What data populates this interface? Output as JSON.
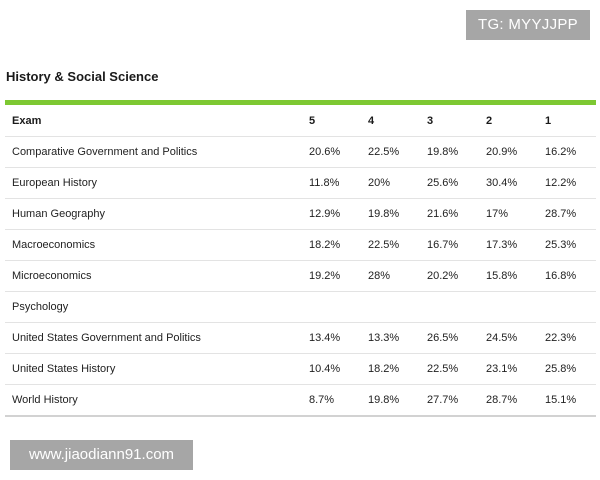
{
  "watermark_top": "TG: MYYJJPP",
  "watermark_bottom": "www.jiaodiann91.com",
  "section_title": "History & Social Science",
  "table": {
    "headers": [
      "Exam",
      "5",
      "4",
      "3",
      "2",
      "1"
    ],
    "rows": [
      [
        "Comparative Government and Politics",
        "20.6%",
        "22.5%",
        "19.8%",
        "20.9%",
        "16.2%"
      ],
      [
        "European History",
        "11.8%",
        "20%",
        "25.6%",
        "30.4%",
        "12.2%"
      ],
      [
        "Human Geography",
        "12.9%",
        "19.8%",
        "21.6%",
        "17%",
        "28.7%"
      ],
      [
        "Macroeconomics",
        "18.2%",
        "22.5%",
        "16.7%",
        "17.3%",
        "25.3%"
      ],
      [
        "Microeconomics",
        "19.2%",
        "28%",
        "20.2%",
        "15.8%",
        "16.8%"
      ],
      [
        "Psychology",
        "",
        "",
        "",
        "",
        ""
      ],
      [
        "United States Government and Politics",
        "13.4%",
        "13.3%",
        "26.5%",
        "24.5%",
        "22.3%"
      ],
      [
        "United States History",
        "10.4%",
        "18.2%",
        "22.5%",
        "23.1%",
        "25.8%"
      ],
      [
        "World History",
        "8.7%",
        "19.8%",
        "27.7%",
        "28.7%",
        "15.1%"
      ]
    ]
  },
  "colors": {
    "accent_bar": "#7dc832",
    "watermark_bg": "#a6a6a6"
  }
}
